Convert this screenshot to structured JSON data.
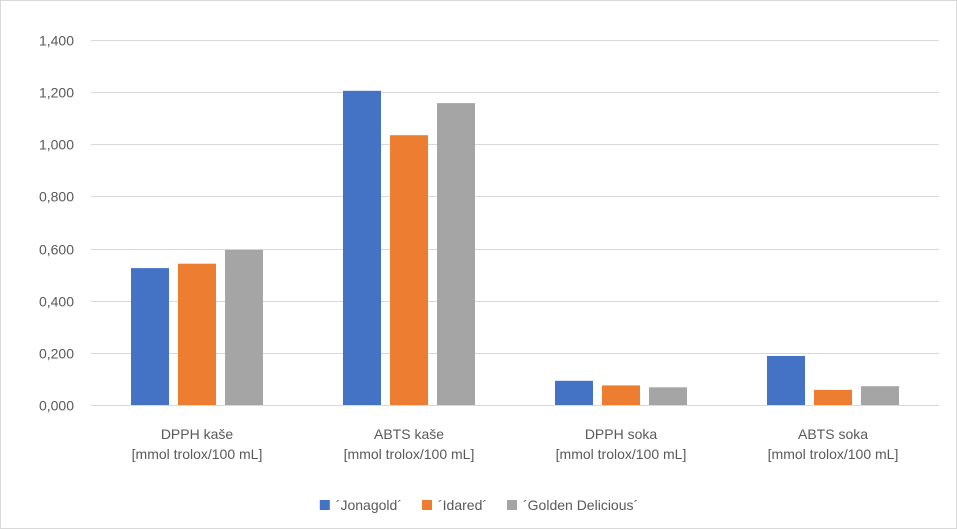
{
  "chart_data": {
    "type": "bar",
    "categories": [
      [
        "DPPH kaše",
        "[mmol trolox/100 mL]"
      ],
      [
        "ABTS kaše",
        "[mmol trolox/100 mL]"
      ],
      [
        "DPPH soka",
        "[mmol trolox/100 mL]"
      ],
      [
        "ABTS soka",
        "[mmol trolox/100 mL]"
      ]
    ],
    "series": [
      {
        "name": "´Jonagold´",
        "color": "#4472c4",
        "values": [
          0.525,
          1.205,
          0.093,
          0.188
        ]
      },
      {
        "name": "´Idared´",
        "color": "#ed7d31",
        "values": [
          0.542,
          1.035,
          0.075,
          0.058
        ]
      },
      {
        "name": "´Golden Delicious´",
        "color": "#a5a5a5",
        "values": [
          0.595,
          1.158,
          0.068,
          0.072
        ]
      }
    ],
    "yticks": [
      "0,000",
      "0,200",
      "0,400",
      "0,600",
      "0,800",
      "1,000",
      "1,200",
      "1,400"
    ],
    "ylim": [
      0,
      1.4
    ],
    "ystep": 0.2,
    "grid": true,
    "legend_position": "bottom",
    "gridline_color": "#d9d9d9",
    "title": "",
    "xlabel": "",
    "ylabel": ""
  }
}
